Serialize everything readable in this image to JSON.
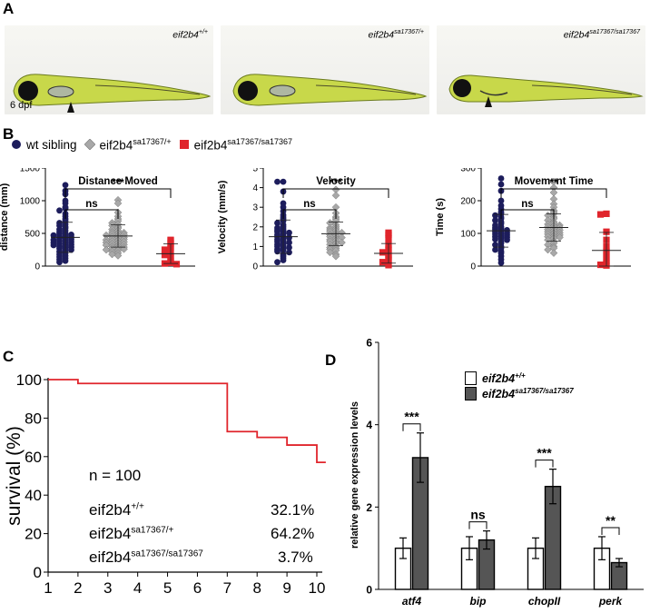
{
  "panel_a": {
    "letter": "A",
    "images": [
      {
        "genotype_base": "eif2b4",
        "genotype_sup": "+/+"
      },
      {
        "genotype_base": "eif2b4",
        "genotype_sup": "sa17367/+"
      },
      {
        "genotype_base": "eif2b4",
        "genotype_sup": "sa17367/sa17367"
      }
    ],
    "age_label": "6 dpf"
  },
  "panel_b": {
    "letter": "B",
    "legend": [
      {
        "base": "wt sibling",
        "sup": "",
        "color": "#1d1d5c",
        "shape": "circle"
      },
      {
        "base": "eif2b4",
        "sup": "sa17367/+",
        "color": "#a8a8a8",
        "shape": "diamond"
      },
      {
        "base": "eif2b4",
        "sup": "sa17367/sa17367",
        "color": "#e0252c",
        "shape": "square"
      }
    ]
  },
  "panel_c": {
    "letter": "C",
    "n_label": "n = 100",
    "rows": [
      {
        "base": "eif2b4",
        "sup": "+/+",
        "pct": "32.1%"
      },
      {
        "base": "eif2b4",
        "sup": "sa17367/+",
        "pct": "64.2%"
      },
      {
        "base": "eif2b4",
        "sup": "sa17367/sa17367",
        "pct": "3.7%"
      }
    ]
  },
  "panel_d": {
    "letter": "D",
    "legend": [
      {
        "base": "eif2b4",
        "sup": "+/+",
        "fill": "#ffffff"
      },
      {
        "base": "eif2b4",
        "sup": "sa17367/sa17367",
        "fill": "#555555"
      }
    ]
  },
  "chart_data": [
    {
      "type": "scatter",
      "title": "Distance Moved",
      "ylabel": "distance (mm)",
      "ylim": [
        0,
        1500
      ],
      "yticks": [
        0,
        500,
        1000,
        1500
      ],
      "groups": [
        {
          "mean": 440,
          "sd": 230,
          "points": [
            1240,
            1150,
            1100,
            1000,
            960,
            900,
            880,
            850,
            800,
            760,
            720,
            690,
            660,
            640,
            620,
            600,
            580,
            560,
            540,
            520,
            500,
            490,
            480,
            470,
            460,
            450,
            440,
            430,
            420,
            410,
            400,
            390,
            380,
            370,
            360,
            350,
            340,
            330,
            320,
            310,
            300,
            290,
            280,
            270,
            250,
            240,
            220,
            200,
            180,
            160,
            140,
            120,
            100,
            80,
            60
          ]
        },
        {
          "mean": 460,
          "sd": 170,
          "points": [
            1010,
            960,
            820,
            760,
            720,
            690,
            660,
            640,
            620,
            600,
            580,
            560,
            540,
            520,
            510,
            500,
            490,
            480,
            470,
            460,
            450,
            440,
            430,
            420,
            410,
            400,
            390,
            380,
            370,
            360,
            350,
            340,
            330,
            320,
            310,
            300,
            290,
            280,
            270,
            260,
            250,
            240,
            220,
            200,
            180,
            160
          ]
        },
        {
          "mean": 190,
          "sd": 150,
          "points": [
            400,
            390,
            350,
            300,
            280,
            250,
            200,
            170,
            150,
            120,
            80,
            50,
            40,
            30
          ]
        }
      ],
      "comparisons": [
        {
          "from": 0,
          "to": 1,
          "label": "ns"
        },
        {
          "from": 0,
          "to": 2,
          "label": "***"
        }
      ]
    },
    {
      "type": "scatter",
      "title": "Velocity",
      "ylabel": "Velocity (mm/s)",
      "ylim": [
        0,
        5
      ],
      "yticks": [
        0,
        1,
        2,
        3,
        4,
        5
      ],
      "groups": [
        {
          "mean": 1.5,
          "sd": 0.85,
          "points": [
            4.3,
            4.3,
            3.8,
            3.2,
            3.0,
            2.8,
            2.6,
            2.5,
            2.4,
            2.3,
            2.2,
            2.1,
            2.0,
            1.95,
            1.9,
            1.85,
            1.8,
            1.75,
            1.7,
            1.65,
            1.6,
            1.55,
            1.5,
            1.45,
            1.4,
            1.35,
            1.3,
            1.25,
            1.2,
            1.15,
            1.1,
            1.05,
            1.0,
            0.95,
            0.9,
            0.85,
            0.8,
            0.75,
            0.7,
            0.6,
            0.5,
            0.4,
            0.3,
            0.2
          ]
        },
        {
          "mean": 1.65,
          "sd": 0.6,
          "points": [
            3.9,
            3.6,
            3.0,
            2.7,
            2.5,
            2.4,
            2.3,
            2.2,
            2.1,
            2.0,
            1.95,
            1.9,
            1.85,
            1.8,
            1.75,
            1.7,
            1.65,
            1.6,
            1.55,
            1.5,
            1.45,
            1.4,
            1.35,
            1.3,
            1.25,
            1.2,
            1.15,
            1.1,
            1.0,
            0.95,
            0.9,
            0.85,
            0.8,
            0.7,
            0.6,
            0.5
          ]
        },
        {
          "mean": 0.65,
          "sd": 0.5,
          "points": [
            1.7,
            1.6,
            1.4,
            1.1,
            0.9,
            0.8,
            0.7,
            0.6,
            0.5,
            0.4,
            0.3,
            0.2,
            0.1,
            0.05
          ]
        }
      ],
      "comparisons": [
        {
          "from": 0,
          "to": 1,
          "label": "ns"
        },
        {
          "from": 0,
          "to": 2,
          "label": "***"
        }
      ]
    },
    {
      "type": "scatter",
      "title": "Movement Time",
      "ylabel": "Time (s)",
      "ylim": [
        0,
        300
      ],
      "yticks": [
        0,
        100,
        200,
        300
      ],
      "groups": [
        {
          "mean": 108,
          "sd": 50,
          "points": [
            268,
            250,
            230,
            200,
            185,
            175,
            165,
            160,
            155,
            150,
            145,
            140,
            135,
            130,
            125,
            120,
            118,
            115,
            112,
            110,
            108,
            105,
            102,
            100,
            98,
            95,
            92,
            90,
            88,
            85,
            82,
            80,
            75,
            70,
            65,
            60,
            55,
            50,
            45,
            40,
            30,
            20,
            10
          ]
        },
        {
          "mean": 118,
          "sd": 42,
          "points": [
            258,
            240,
            225,
            205,
            190,
            180,
            170,
            165,
            160,
            155,
            150,
            145,
            140,
            135,
            130,
            128,
            125,
            122,
            120,
            118,
            115,
            112,
            110,
            108,
            105,
            102,
            100,
            98,
            95,
            92,
            90,
            88,
            85,
            80,
            75,
            70,
            65,
            60,
            55,
            50,
            40
          ]
        },
        {
          "mean": 48,
          "sd": 55,
          "points": [
            160,
            158,
            105,
            80,
            60,
            45,
            35,
            25,
            15,
            8,
            4,
            2
          ]
        }
      ],
      "comparisons": [
        {
          "from": 0,
          "to": 1,
          "label": "ns"
        },
        {
          "from": 0,
          "to": 2,
          "label": "**"
        }
      ]
    },
    {
      "type": "line",
      "ylabel": "survival (%)",
      "ylim": [
        0,
        100
      ],
      "yticks": [
        0,
        20,
        40,
        60,
        80,
        100
      ],
      "xlim": [
        1,
        10
      ],
      "xticks": [
        1,
        2,
        3,
        4,
        5,
        6,
        7,
        8,
        9,
        10
      ],
      "series": [
        {
          "color": "#e0252c",
          "steps": [
            [
              1,
              100
            ],
            [
              2,
              100
            ],
            [
              2,
              98
            ],
            [
              7,
              98
            ],
            [
              7,
              73
            ],
            [
              8,
              73
            ],
            [
              8,
              70
            ],
            [
              9,
              70
            ],
            [
              9,
              66
            ],
            [
              10,
              66
            ],
            [
              10,
              57
            ],
            [
              10.3,
              57
            ]
          ]
        }
      ]
    },
    {
      "type": "bar",
      "ylabel": "relative gene expression levels",
      "ylim": [
        0,
        6
      ],
      "yticks": [
        0,
        2,
        4,
        6
      ],
      "categories": [
        "atf4",
        "bip",
        "chopII",
        "perk"
      ],
      "series": [
        {
          "values": [
            1.0,
            1.0,
            1.0,
            1.0
          ],
          "errors": [
            0.25,
            0.28,
            0.25,
            0.28
          ]
        },
        {
          "values": [
            3.2,
            1.2,
            2.5,
            0.65
          ],
          "errors": [
            0.6,
            0.22,
            0.42,
            0.1
          ]
        }
      ],
      "comparisons": [
        {
          "category": 0,
          "label": "***"
        },
        {
          "category": 1,
          "label": "ns"
        },
        {
          "category": 2,
          "label": "***"
        },
        {
          "category": 3,
          "label": "**"
        }
      ]
    }
  ]
}
